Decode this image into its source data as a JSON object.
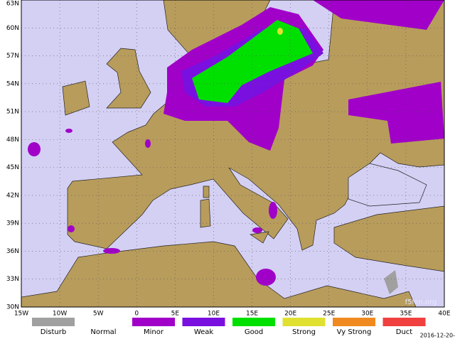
{
  "map": {
    "lat_labels": [
      "63N",
      "60N",
      "57N",
      "54N",
      "51N",
      "48N",
      "45N",
      "42N",
      "39N",
      "36N",
      "33N",
      "30N"
    ],
    "lon_labels": [
      "15W",
      "10W",
      "5W",
      "0",
      "5E",
      "10E",
      "15E",
      "20E",
      "25E",
      "30E",
      "35E",
      "40E"
    ],
    "legend": [
      {
        "label": "Disturb",
        "color": "#a0a0a0"
      },
      {
        "label": "Normal",
        "color": "#ffffff"
      },
      {
        "label": "Minor",
        "color": "#a000c8"
      },
      {
        "label": "Weak",
        "color": "#7a10e0"
      },
      {
        "label": "Good",
        "color": "#00e000"
      },
      {
        "label": "Strong",
        "color": "#e0e030"
      },
      {
        "label": "Vy Strong",
        "color": "#f08a20"
      },
      {
        "label": "Duct",
        "color": "#f04040"
      }
    ],
    "watermark": "f5len.org",
    "date": "2016-12-20-"
  }
}
